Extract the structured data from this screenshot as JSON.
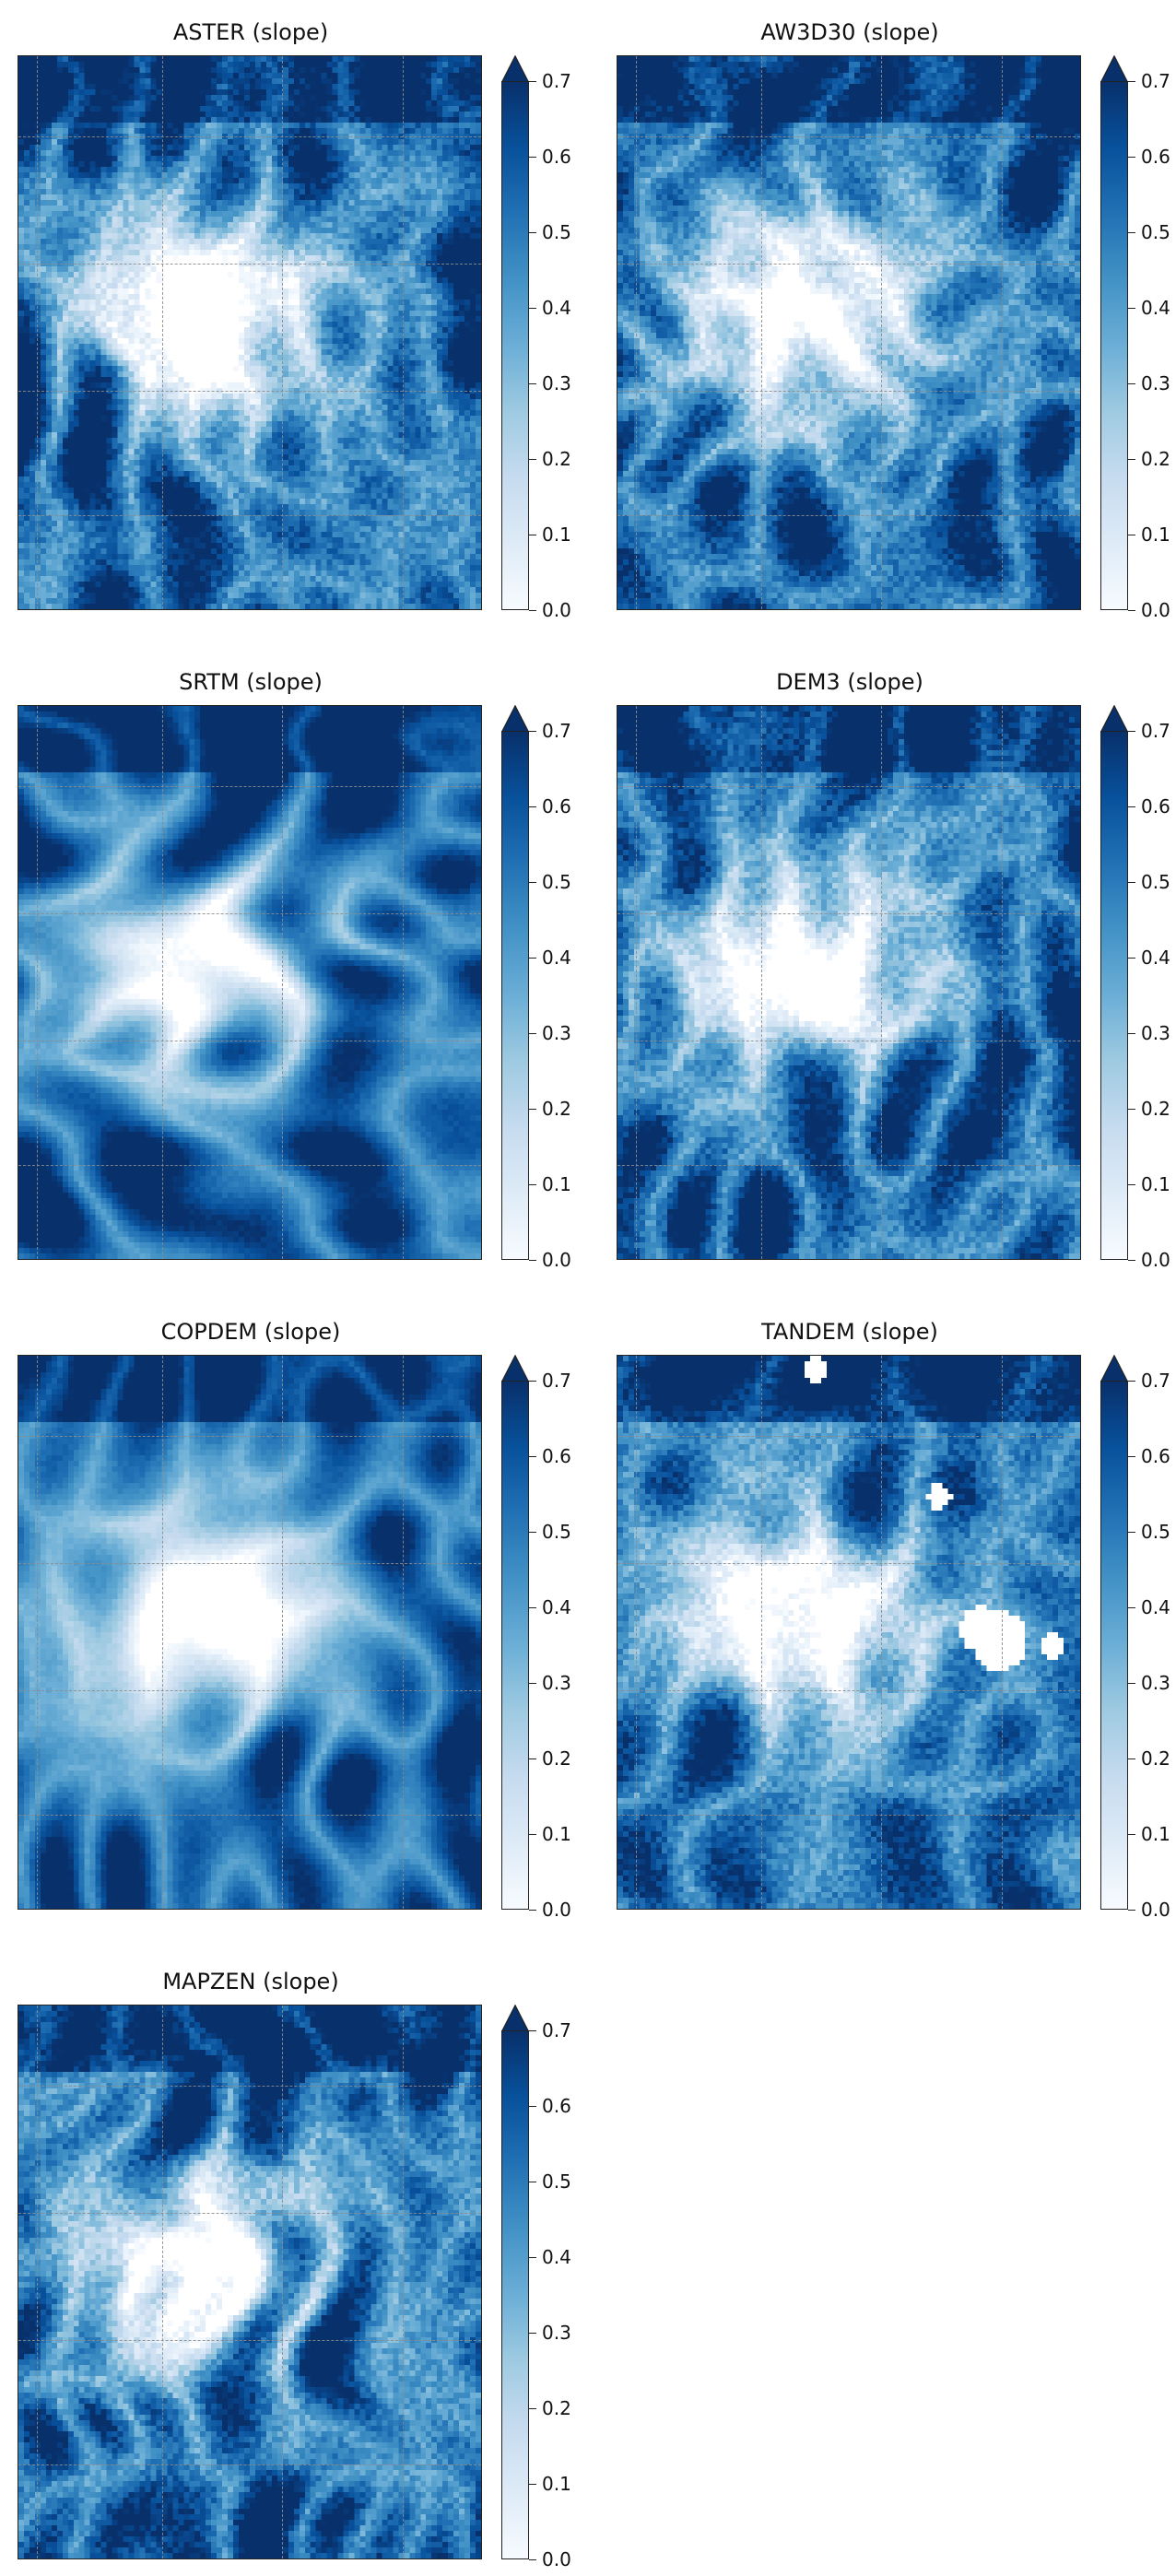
{
  "colormap": {
    "name": "Blues",
    "stops": [
      "#f7fbff",
      "#deebf7",
      "#c6dbef",
      "#9ecae1",
      "#6baed6",
      "#4292c6",
      "#2171b5",
      "#08519c",
      "#08306b"
    ],
    "extend": "max"
  },
  "gridline_color": "#8c8c8c",
  "chart_data": [
    {
      "type": "heatmap",
      "title": "ASTER (slope)",
      "colorbar": {
        "vmin": 0.0,
        "vmax": 0.7,
        "ticks": [
          "0.0",
          "0.1",
          "0.2",
          "0.3",
          "0.4",
          "0.5",
          "0.6",
          "0.7"
        ]
      },
      "grid": true,
      "seed": 11
    },
    {
      "type": "heatmap",
      "title": "AW3D30 (slope)",
      "colorbar": {
        "vmin": 0.0,
        "vmax": 0.7,
        "ticks": [
          "0.0",
          "0.1",
          "0.2",
          "0.3",
          "0.4",
          "0.5",
          "0.6",
          "0.7"
        ]
      },
      "grid": true,
      "seed": 23
    },
    {
      "type": "heatmap",
      "title": "SRTM (slope)",
      "colorbar": {
        "vmin": 0.0,
        "vmax": 0.7,
        "ticks": [
          "0.0",
          "0.1",
          "0.2",
          "0.3",
          "0.4",
          "0.5",
          "0.6",
          "0.7"
        ]
      },
      "grid": true,
      "seed": 37
    },
    {
      "type": "heatmap",
      "title": "DEM3 (slope)",
      "colorbar": {
        "vmin": 0.0,
        "vmax": 0.7,
        "ticks": [
          "0.0",
          "0.1",
          "0.2",
          "0.3",
          "0.4",
          "0.5",
          "0.6",
          "0.7"
        ]
      },
      "grid": true,
      "seed": 41
    },
    {
      "type": "heatmap",
      "title": "COPDEM (slope)",
      "colorbar": {
        "vmin": 0.0,
        "vmax": 0.7,
        "ticks": [
          "0.0",
          "0.1",
          "0.2",
          "0.3",
          "0.4",
          "0.5",
          "0.6",
          "0.7"
        ]
      },
      "grid": true,
      "seed": 53
    },
    {
      "type": "heatmap",
      "title": "TANDEM (slope)",
      "colorbar": {
        "vmin": 0.0,
        "vmax": 0.7,
        "ticks": [
          "0.0",
          "0.1",
          "0.2",
          "0.3",
          "0.4",
          "0.5",
          "0.6",
          "0.7"
        ]
      },
      "grid": true,
      "seed": 67,
      "has_nodata": true
    },
    {
      "type": "heatmap",
      "title": "MAPZEN (slope)",
      "colorbar": {
        "vmin": 0.0,
        "vmax": 0.7,
        "ticks": [
          "0.0",
          "0.1",
          "0.2",
          "0.3",
          "0.4",
          "0.5",
          "0.6",
          "0.7"
        ]
      },
      "grid": true,
      "seed": 79
    }
  ]
}
